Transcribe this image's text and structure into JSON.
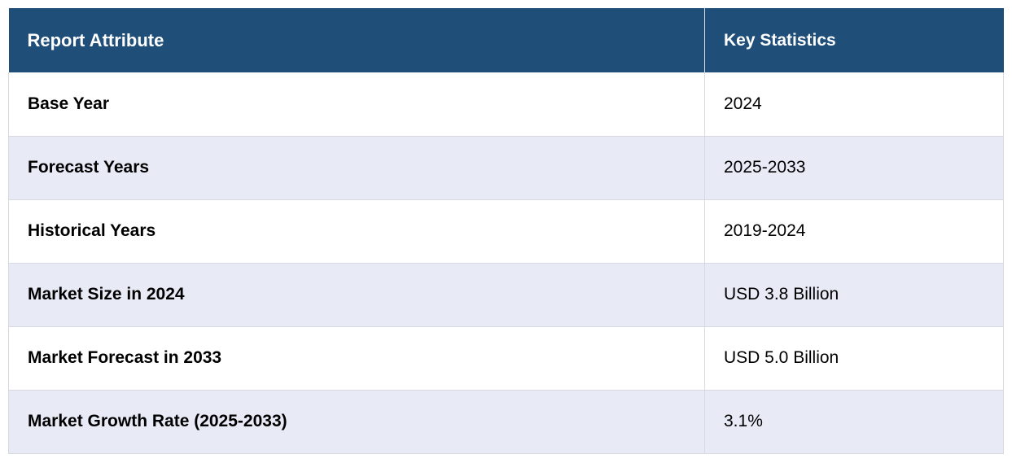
{
  "table": {
    "headers": [
      "Report Attribute",
      "Key Statistics"
    ],
    "rows": [
      {
        "attribute": "Base Year",
        "value": "2024"
      },
      {
        "attribute": "Forecast Years",
        "value": "2025-2033"
      },
      {
        "attribute": "Historical Years",
        "value": "2019-2024"
      },
      {
        "attribute": "Market Size in 2024",
        "value": "USD 3.8 Billion"
      },
      {
        "attribute": "Market Forecast in 2033",
        "value": "USD 5.0 Billion"
      },
      {
        "attribute": "Market Growth Rate (2025-2033)",
        "value": "3.1%"
      }
    ],
    "colors": {
      "header_bg": "#1f4e79",
      "header_text": "#ffffff",
      "alt_row_bg": "#e8eaf6",
      "row_bg": "#ffffff",
      "border": "#d6d9e0"
    }
  }
}
